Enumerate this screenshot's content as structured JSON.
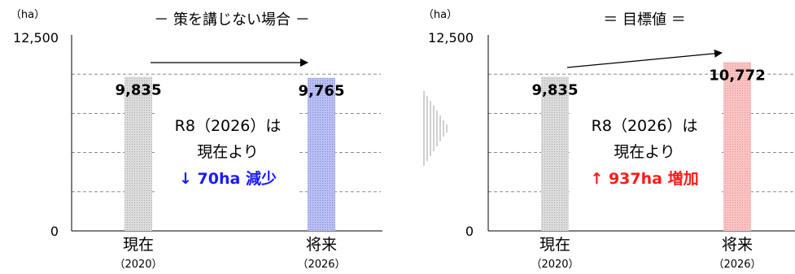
{
  "chart_data": [
    {
      "type": "bar",
      "title": "－ 策を講じない場合 －",
      "unit": "（ha）",
      "ylim": [
        0,
        12500
      ],
      "ytick_labels": [
        "0",
        "12,500"
      ],
      "grid": "dashed",
      "categories": [
        "現在",
        "将来"
      ],
      "category_sublabels": [
        "（2020）",
        "（2026）"
      ],
      "values": [
        9835,
        9765
      ],
      "value_labels": [
        "9,835",
        "9,765"
      ],
      "bar_colors": [
        "#cfcfcf",
        "#aab0ee"
      ],
      "annotation": {
        "line1": "R8（2026）は",
        "line2": "現在より",
        "line3": "↓ 70ha 減少",
        "line3_color": "#1a1aff"
      }
    },
    {
      "type": "bar",
      "title": "＝ 目標値 ＝",
      "unit": "（ha）",
      "ylim": [
        0,
        12500
      ],
      "ytick_labels": [
        "0",
        "12,500"
      ],
      "grid": "dashed",
      "categories": [
        "現在",
        "将来"
      ],
      "category_sublabels": [
        "（2020）",
        "（2026）"
      ],
      "values": [
        9835,
        10772
      ],
      "value_labels": [
        "9,835",
        "10,772"
      ],
      "bar_colors": [
        "#cfcfcf",
        "#f5b5b5"
      ],
      "annotation": {
        "line1": "R8（2026）は",
        "line2": "現在より",
        "line3": "↑ 937ha 増加",
        "line3_color": "#ff1a1a"
      }
    }
  ]
}
